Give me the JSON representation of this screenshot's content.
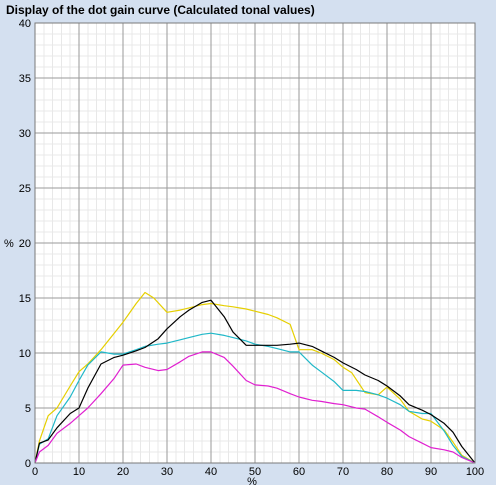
{
  "window": {
    "title": "Display of the dot gain curve (Calculated tonal values)"
  },
  "chart_data": {
    "type": "line",
    "title": "Display of the dot gain curve (Calculated tonal values)",
    "xlabel": "%",
    "ylabel": "%",
    "xlim": [
      0,
      100
    ],
    "ylim": [
      0,
      40
    ],
    "xticks": [
      "0",
      "10",
      "20",
      "30",
      "40",
      "50",
      "60",
      "70",
      "80",
      "90",
      "100"
    ],
    "yticks": [
      "0",
      "5",
      "10",
      "15",
      "20",
      "25",
      "30",
      "35",
      "40"
    ],
    "grid": true,
    "legend": "none",
    "series": [
      {
        "color": "#e6cf00",
        "x": [
          0,
          1,
          3,
          5,
          8,
          10,
          12,
          15,
          18,
          20,
          23,
          25,
          27,
          30,
          33,
          35,
          38,
          40,
          43,
          45,
          48,
          50,
          53,
          55,
          58,
          60,
          63,
          65,
          68,
          70,
          72,
          75,
          78,
          80,
          83,
          85,
          88,
          90,
          93,
          95,
          97,
          100
        ],
        "y": [
          0,
          2.0,
          4.3,
          5.0,
          7.0,
          8.3,
          9.0,
          10.3,
          11.8,
          12.8,
          14.5,
          15.5,
          15.0,
          13.7,
          13.9,
          14.1,
          14.4,
          14.5,
          14.3,
          14.2,
          14.0,
          13.8,
          13.5,
          13.2,
          12.6,
          10.3,
          10.3,
          10.0,
          9.4,
          8.7,
          8.2,
          6.4,
          6.2,
          6.9,
          5.8,
          4.7,
          4.0,
          3.8,
          3.0,
          1.9,
          0.7,
          0
        ]
      },
      {
        "color": "#20b8c8",
        "x": [
          0,
          1,
          3,
          5,
          8,
          10,
          12,
          15,
          18,
          20,
          23,
          25,
          28,
          30,
          33,
          35,
          38,
          40,
          43,
          45,
          48,
          50,
          53,
          55,
          58,
          60,
          63,
          65,
          68,
          70,
          73,
          75,
          78,
          80,
          83,
          85,
          88,
          90,
          93,
          95,
          97,
          100
        ],
        "y": [
          0,
          1.7,
          2.2,
          4.3,
          6.0,
          7.5,
          8.9,
          10.1,
          9.9,
          9.9,
          10.3,
          10.6,
          10.8,
          10.9,
          11.2,
          11.4,
          11.7,
          11.8,
          11.6,
          11.4,
          11.1,
          10.8,
          10.6,
          10.4,
          10.1,
          10.1,
          8.9,
          8.3,
          7.4,
          6.6,
          6.6,
          6.5,
          6.2,
          5.9,
          5.3,
          4.7,
          4.5,
          4.5,
          2.9,
          1.6,
          0.6,
          0
        ]
      },
      {
        "color": "#000000",
        "x": [
          0,
          1,
          3,
          5,
          8,
          10,
          12,
          15,
          18,
          20,
          23,
          25,
          28,
          30,
          33,
          35,
          38,
          40,
          43,
          45,
          48,
          50,
          53,
          55,
          58,
          60,
          63,
          65,
          68,
          70,
          73,
          75,
          78,
          80,
          83,
          85,
          88,
          90,
          93,
          95,
          97,
          100
        ],
        "y": [
          0,
          1.8,
          2.1,
          3.2,
          4.5,
          5.0,
          6.8,
          9.0,
          9.6,
          9.8,
          10.2,
          10.5,
          11.3,
          12.2,
          13.3,
          13.9,
          14.6,
          14.8,
          13.3,
          11.9,
          10.7,
          10.7,
          10.7,
          10.7,
          10.8,
          10.9,
          10.6,
          10.2,
          9.6,
          9.1,
          8.5,
          8.0,
          7.5,
          7.0,
          6.1,
          5.3,
          4.8,
          4.4,
          3.6,
          2.8,
          1.5,
          0
        ]
      },
      {
        "color": "#e020d0",
        "x": [
          0,
          1,
          3,
          5,
          8,
          10,
          12,
          15,
          18,
          20,
          23,
          25,
          28,
          30,
          33,
          35,
          38,
          40,
          43,
          45,
          48,
          50,
          53,
          55,
          58,
          60,
          63,
          65,
          68,
          70,
          73,
          75,
          78,
          80,
          83,
          85,
          88,
          90,
          93,
          95,
          97,
          100
        ],
        "y": [
          0,
          1.0,
          1.6,
          2.7,
          3.6,
          4.3,
          5.0,
          6.3,
          7.7,
          8.9,
          9.0,
          8.7,
          8.4,
          8.5,
          9.2,
          9.7,
          10.1,
          10.1,
          9.6,
          8.8,
          7.5,
          7.1,
          7.0,
          6.8,
          6.3,
          6.0,
          5.7,
          5.6,
          5.4,
          5.3,
          5.0,
          4.9,
          4.2,
          3.7,
          3.0,
          2.4,
          1.8,
          1.4,
          1.2,
          1.0,
          0.5,
          0
        ]
      }
    ]
  }
}
